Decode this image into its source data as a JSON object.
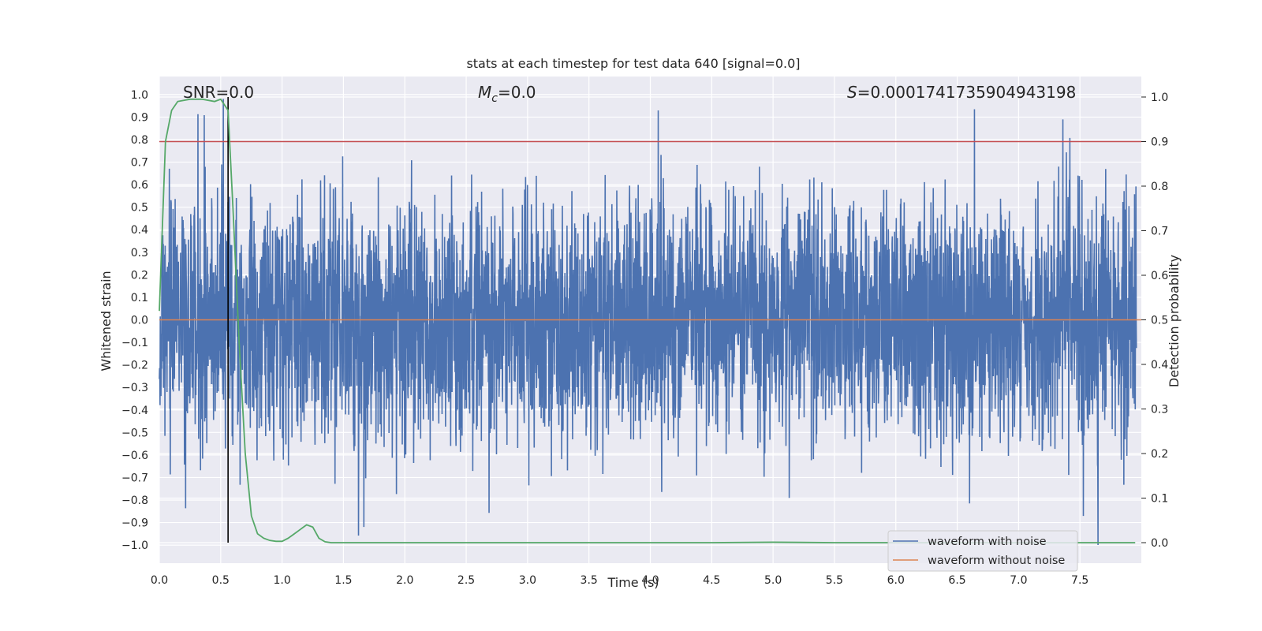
{
  "chart_data": {
    "type": "line",
    "title": "stats at each timestep for test data 640 [signal=0.0]",
    "xlabel": "Time (s)",
    "ylabel": "Whitened strain",
    "y2label": "Detection probability",
    "xlim": [
      0.0,
      8.0
    ],
    "ylim": [
      -1.08,
      1.08
    ],
    "y2lim": [
      -0.046,
      1.046
    ],
    "xticks": [
      "0.0",
      "0.5",
      "1.0",
      "1.5",
      "2.0",
      "2.5",
      "3.0",
      "3.5",
      "4.0",
      "4.5",
      "5.0",
      "5.5",
      "6.0",
      "6.5",
      "7.0",
      "7.5"
    ],
    "yticks": [
      "1.0",
      "0.9",
      "0.8",
      "0.7",
      "0.6",
      "0.5",
      "0.4",
      "0.3",
      "0.2",
      "0.1",
      "0.0",
      "−0.1",
      "−0.2",
      "−0.3",
      "−0.4",
      "−0.5",
      "−0.6",
      "−0.7",
      "−0.8",
      "−0.9",
      "−1.0"
    ],
    "y2ticks": [
      "0.0",
      "0.1",
      "0.2",
      "0.3",
      "0.4",
      "0.5",
      "0.6",
      "0.7",
      "0.8",
      "0.9",
      "1.0"
    ],
    "annotations": {
      "snr": "SNR=0.0",
      "mc_symbol": "M",
      "mc_sub": "c",
      "mc_value": "=0.0",
      "s_symbol": "S",
      "s_value": "=0.0001741735904943198"
    },
    "threshold": 0.9,
    "marker_time": 0.56,
    "legend": {
      "position": "lower-right",
      "entries": [
        {
          "name": "waveform with noise",
          "color": "#4c72b0"
        },
        {
          "name": "waveform without noise",
          "color": "#dd8452"
        }
      ]
    },
    "series": [
      {
        "name": "waveform with noise",
        "axis": "left",
        "color": "#4c72b0",
        "description": "whitened noise, amplitude mostly within ±0.6, peaks near ±1.0"
      },
      {
        "name": "waveform without noise",
        "axis": "left",
        "color": "#dd8452",
        "values_constant": 0.0
      },
      {
        "name": "detection probability",
        "axis": "right",
        "color": "#55a868",
        "x": [
          0.0,
          0.05,
          0.1,
          0.15,
          0.25,
          0.35,
          0.45,
          0.5,
          0.56,
          0.6,
          0.65,
          0.7,
          0.75,
          0.8,
          0.85,
          0.9,
          0.95,
          1.0,
          1.05,
          1.1,
          1.15,
          1.2,
          1.25,
          1.3,
          1.35,
          1.4,
          1.6,
          2.0,
          2.5,
          3.0,
          3.5,
          4.0,
          4.5,
          5.0,
          5.5,
          6.0,
          6.5,
          7.0,
          7.5,
          7.95
        ],
        "values": [
          0.52,
          0.9,
          0.97,
          0.99,
          0.995,
          0.995,
          0.99,
          0.995,
          0.97,
          0.75,
          0.45,
          0.2,
          0.06,
          0.02,
          0.01,
          0.005,
          0.003,
          0.003,
          0.01,
          0.02,
          0.03,
          0.04,
          0.035,
          0.01,
          0.002,
          0.0,
          0.0,
          0.0,
          0.0,
          0.0,
          0.0,
          0.0,
          0.0,
          0.001,
          0.0,
          0.0,
          0.0,
          0.0,
          0.0,
          0.0
        ]
      }
    ],
    "colors": {
      "plot_background": "#eaeaf2",
      "grid": "#ffffff",
      "noise": "#4c72b0",
      "clean": "#dd8452",
      "probability": "#55a868",
      "threshold": "#c44e52",
      "marker": "#000000"
    }
  }
}
